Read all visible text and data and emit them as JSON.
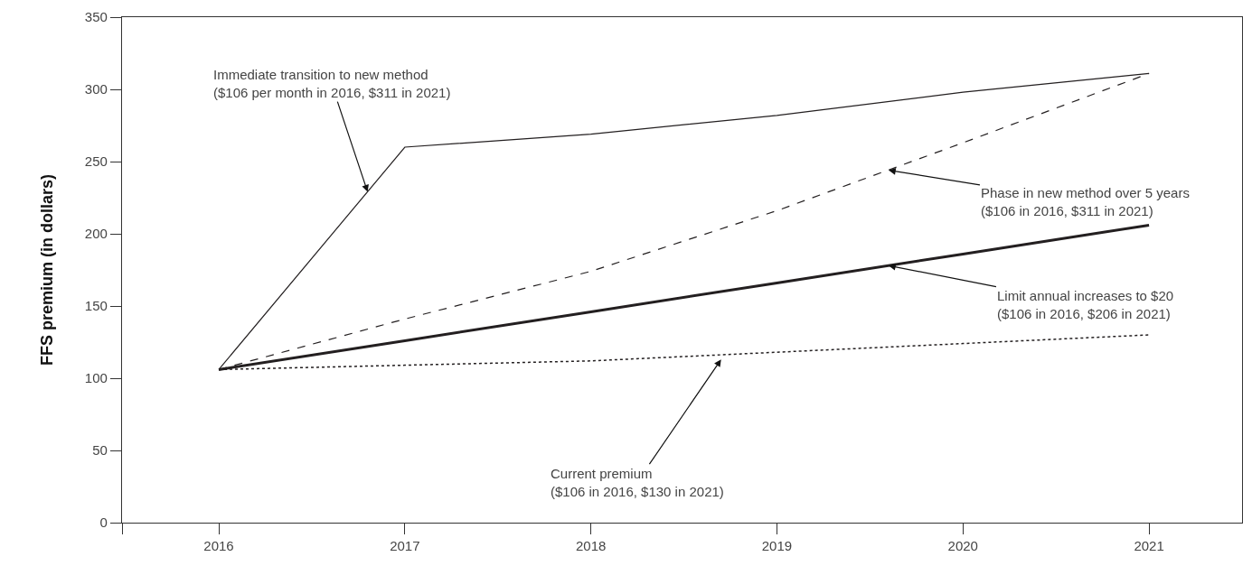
{
  "chart_data": {
    "type": "line",
    "ylabel": "FFS premium (in dollars)",
    "x": [
      2016,
      2017,
      2018,
      2019,
      2020,
      2021
    ],
    "series": [
      {
        "color": "#231f20",
        "values": [
          106,
          260,
          269,
          282,
          298,
          311
        ],
        "line_style": "solid"
      },
      {
        "color": "#231f20",
        "values": [
          106,
          141,
          174,
          216,
          263,
          311
        ],
        "line_style": "dashed"
      },
      {
        "color": "#231f20",
        "values": [
          106,
          126,
          146,
          166,
          186,
          206
        ],
        "line_style": "solid"
      },
      {
        "color": "#231f20",
        "values": [
          106,
          109,
          112,
          118,
          124,
          130
        ],
        "line_style": "dotted"
      }
    ],
    "xlim": [
      2015.48,
      2021.5
    ],
    "xticks": [
      {
        "value": 2015.48,
        "label": null
      },
      2016,
      2017,
      2018,
      2019,
      2020,
      2021
    ],
    "ylim": [
      0,
      350
    ],
    "yticks": [
      0,
      50,
      100,
      150,
      200,
      250,
      300,
      350
    ],
    "marker": "none",
    "annotations": [
      {
        "text": "Immediate transition to new method\n($106 per month in 2016, $311 in 2021)",
        "x": 2016.8,
        "y": 229
      },
      {
        "text": "Phase in new method over 5 years\n($106 in 2016, $311 in 2021)",
        "x": 2019.6,
        "y": 244
      },
      {
        "text": "Limit annual increases to $20\n($106 in 2016, $206 in 2021)",
        "x": 2019.6,
        "y": 178
      },
      {
        "text": "Current premium\n($106 in 2016, $130 in 2021)",
        "x": 2018.7,
        "y": 113
      }
    ]
  }
}
